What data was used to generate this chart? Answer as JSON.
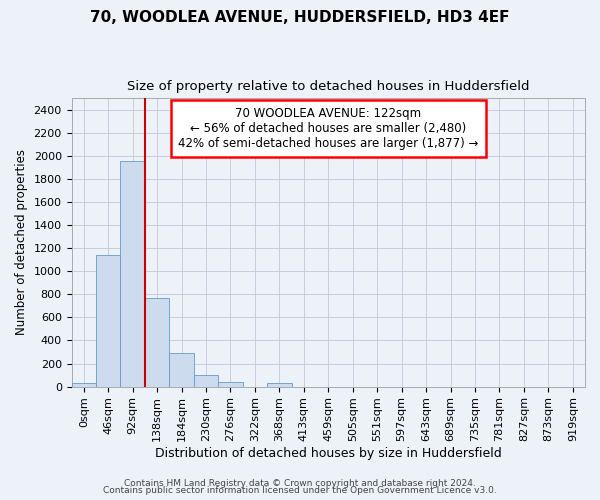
{
  "title1": "70, WOODLEA AVENUE, HUDDERSFIELD, HD3 4EF",
  "title2": "Size of property relative to detached houses in Huddersfield",
  "xlabel": "Distribution of detached houses by size in Huddersfield",
  "ylabel": "Number of detached properties",
  "bin_labels": [
    "0sqm",
    "46sqm",
    "92sqm",
    "138sqm",
    "184sqm",
    "230sqm",
    "276sqm",
    "322sqm",
    "368sqm",
    "413sqm",
    "459sqm",
    "505sqm",
    "551sqm",
    "597sqm",
    "643sqm",
    "689sqm",
    "735sqm",
    "781sqm",
    "827sqm",
    "873sqm",
    "919sqm"
  ],
  "bar_values": [
    35,
    1140,
    1960,
    770,
    290,
    100,
    42,
    0,
    28,
    0,
    0,
    0,
    0,
    0,
    0,
    0,
    0,
    0,
    0,
    0,
    0
  ],
  "bar_color": "#ccdcee",
  "bar_edge_color": "#6699cc",
  "vline_color": "#cc0000",
  "vline_pos": 2.5,
  "annotation_line1": "70 WOODLEA AVENUE: 122sqm",
  "annotation_line2": "← 56% of detached houses are smaller (2,480)",
  "annotation_line3": "42% of semi-detached houses are larger (1,877) →",
  "ylim": [
    0,
    2500
  ],
  "yticks": [
    0,
    200,
    400,
    600,
    800,
    1000,
    1200,
    1400,
    1600,
    1800,
    2000,
    2200,
    2400
  ],
  "footer1": "Contains HM Land Registry data © Crown copyright and database right 2024.",
  "footer2": "Contains public sector information licensed under the Open Government Licence v3.0.",
  "bg_color": "#edf2f9",
  "plot_bg_color": "#edf2f9",
  "grid_color": "#c0c8d8",
  "title1_fontsize": 11,
  "title2_fontsize": 9.5,
  "ylabel_fontsize": 8.5,
  "xlabel_fontsize": 9,
  "tick_fontsize": 8,
  "footer_fontsize": 6.5
}
